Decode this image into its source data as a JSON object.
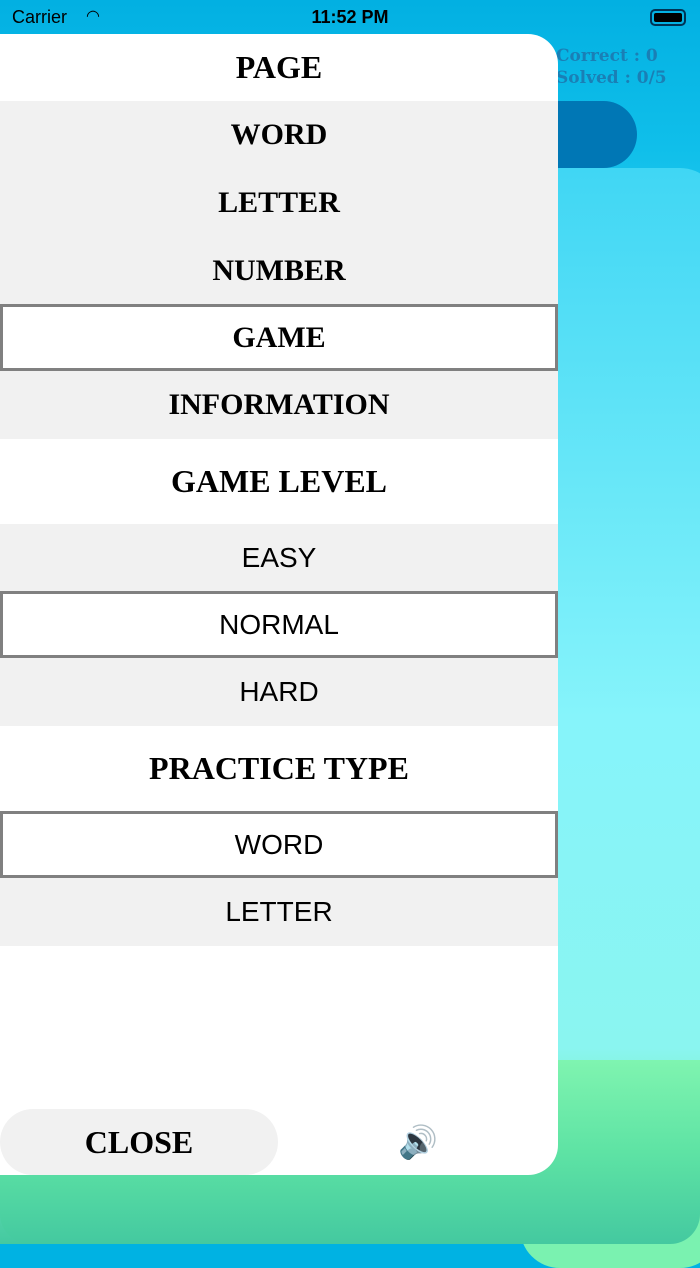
{
  "status": {
    "carrier": "Carrier",
    "time": "11:52 PM"
  },
  "score": {
    "correct": "Correct : 0",
    "solved": "Solved : 0/5"
  },
  "menu": {
    "page_title": "PAGE",
    "pages": [
      "WORD",
      "LETTER",
      "NUMBER",
      "GAME",
      "INFORMATION"
    ],
    "selected_page": "GAME",
    "level_title": "GAME LEVEL",
    "levels": [
      "EASY",
      "NORMAL",
      "HARD"
    ],
    "selected_level": "NORMAL",
    "practice_title": "PRACTICE TYPE",
    "practice_types": [
      "WORD",
      "LETTER"
    ],
    "selected_practice": "WORD",
    "close_label": "CLOSE",
    "sound_icon": "speaker-icon"
  }
}
